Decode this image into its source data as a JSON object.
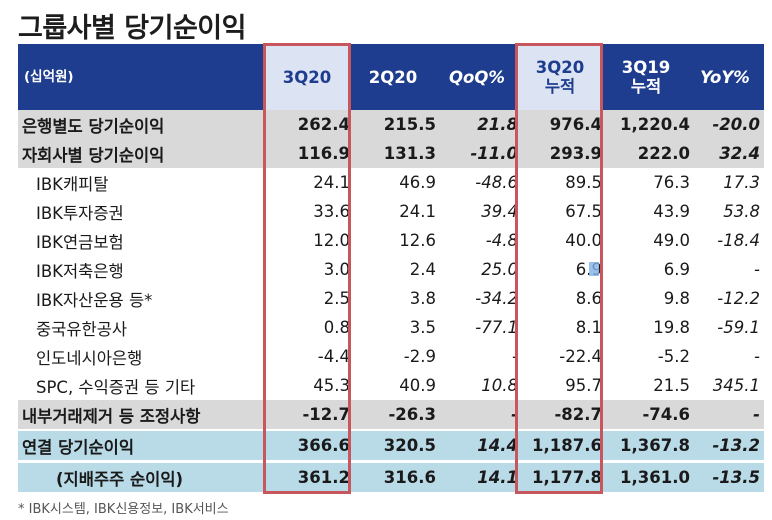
{
  "title": "그룹사별 당기순이익",
  "header": {
    "unit": "(십억원)",
    "cols": [
      "3Q20",
      "2Q20",
      "QoQ%",
      "3Q20\n누적",
      "3Q19\n누적",
      "YoY%"
    ]
  },
  "rows": [
    {
      "label": "은행별도 당기순이익",
      "values": [
        "262.4",
        "215.5",
        "21.8",
        "976.4",
        "1,220.4",
        "-20.0"
      ]
    },
    {
      "label": "자회사별 당기순이익",
      "values": [
        "116.9",
        "131.3",
        "-11.0",
        "293.9",
        "222.0",
        "32.4"
      ]
    },
    {
      "label": "IBK캐피탈",
      "values": [
        "24.1",
        "46.9",
        "-48.6",
        "89.5",
        "76.3",
        "17.3"
      ]
    },
    {
      "label": "IBK투자증권",
      "values": [
        "33.6",
        "24.1",
        "39.4",
        "67.5",
        "43.9",
        "53.8"
      ]
    },
    {
      "label": "IBK연금보험",
      "values": [
        "12.0",
        "12.6",
        "-4.8",
        "40.0",
        "49.0",
        "-18.4"
      ]
    },
    {
      "label": "IBK저축은행",
      "values": [
        "3.0",
        "2.4",
        "25.0",
        "6.9",
        "6.9",
        "-"
      ]
    },
    {
      "label": "IBK자산운용 등*",
      "values": [
        "2.5",
        "3.8",
        "-34.2",
        "8.6",
        "9.8",
        "-12.2"
      ]
    },
    {
      "label": "중국유한공사",
      "values": [
        "0.8",
        "3.5",
        "-77.1",
        "8.1",
        "19.8",
        "-59.1"
      ]
    },
    {
      "label": "인도네시아은행",
      "values": [
        "-4.4",
        "-2.9",
        "-",
        "-22.4",
        "-5.2",
        "-"
      ]
    },
    {
      "label": "SPC, 수익증권 등 기타",
      "values": [
        "45.3",
        "40.9",
        "10.8",
        "95.7",
        "21.5",
        "345.1"
      ]
    },
    {
      "label": "내부거래제거 등 조정사항",
      "values": [
        "-12.7",
        "-26.3",
        "-",
        "-82.7",
        "-74.6",
        "-"
      ]
    },
    {
      "label": "연결 당기순이익",
      "values": [
        "366.6",
        "320.5",
        "14.4",
        "1,187.6",
        "1,367.8",
        "-13.2"
      ]
    },
    {
      "label": "(지배주주 순이익)",
      "values": [
        "361.2",
        "316.6",
        "14.1",
        "1,177.8",
        "1,361.0",
        "-13.5"
      ]
    }
  ],
  "footnote": "* IBK시스템, IBK신용정보, IBK서비스",
  "colors": {
    "header_bg": "#1f3d8f",
    "highlight_header_bg": "#dce3f3",
    "gray_row": "#d9d9d9",
    "blue_row": "#b9dbe8",
    "box_border": "#c8575d"
  }
}
